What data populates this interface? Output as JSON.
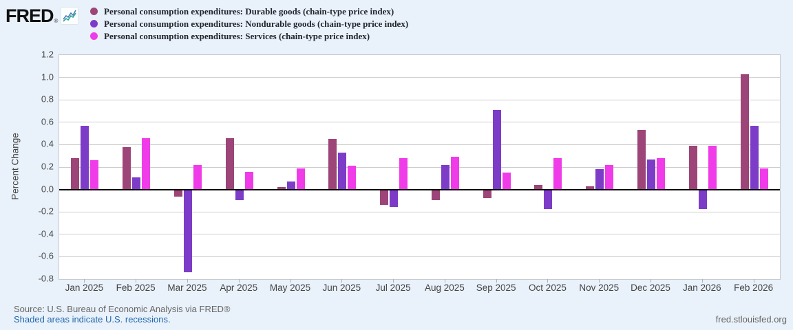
{
  "header": {
    "logo_text": "FRED",
    "logo_reg_mark": "®",
    "logo_icon": "line-chart-icon"
  },
  "legend": {
    "items": [
      {
        "label": "Personal consumption expenditures: Durable goods (chain-type price index)",
        "color": "#9d4479"
      },
      {
        "label": "Personal consumption expenditures: Nondurable goods (chain-type price index)",
        "color": "#7d3cc8"
      },
      {
        "label": "Personal consumption expenditures: Services (chain-type price index)",
        "color": "#ef3ce8"
      }
    ]
  },
  "chart_data": {
    "type": "bar",
    "title": "",
    "xlabel": "",
    "ylabel": "Percent Change",
    "ylim": [
      -0.8,
      1.2
    ],
    "yticks": [
      "1.2",
      "1.0",
      "0.8",
      "0.6",
      "0.4",
      "0.2",
      "0.0",
      "-0.2",
      "-0.4",
      "-0.6",
      "-0.8"
    ],
    "ytick_values": [
      1.2,
      1.0,
      0.8,
      0.6,
      0.4,
      0.2,
      0.0,
      -0.2,
      -0.4,
      -0.6,
      -0.8
    ],
    "grid": true,
    "legend_position": "top-left",
    "categories": [
      "Jan 2025",
      "Feb 2025",
      "Mar 2025",
      "Apr 2025",
      "May 2025",
      "Jun 2025",
      "Jul 2025",
      "Aug 2025",
      "Sep 2025",
      "Oct 2025",
      "Nov 2025",
      "Dec 2025",
      "Jan 2026",
      "Feb 2026"
    ],
    "series": [
      {
        "name": "Personal consumption expenditures: Durable goods (chain-type price index)",
        "color": "#9d4479",
        "values": [
          0.28,
          0.38,
          -0.06,
          0.46,
          0.02,
          0.45,
          -0.13,
          -0.09,
          -0.07,
          0.04,
          0.03,
          0.53,
          0.39,
          1.03
        ]
      },
      {
        "name": "Personal consumption expenditures: Nondurable goods (chain-type price index)",
        "color": "#7d3cc8",
        "values": [
          0.57,
          0.11,
          -0.73,
          -0.09,
          0.07,
          0.33,
          -0.15,
          0.22,
          0.71,
          -0.17,
          0.18,
          0.27,
          -0.17,
          0.57
        ]
      },
      {
        "name": "Personal consumption expenditures: Services (chain-type price index)",
        "color": "#ef3ce8",
        "values": [
          0.26,
          0.46,
          0.22,
          0.16,
          0.19,
          0.21,
          0.28,
          0.29,
          0.15,
          0.28,
          0.22,
          0.28,
          0.39,
          0.19
        ]
      }
    ]
  },
  "footer": {
    "source": "Source: U.S. Bureau of Economic Analysis via FRED®",
    "recessions_link": "Shaded areas indicate U.S. recessions.",
    "site": "fred.stlouisfed.org"
  },
  "colors": {
    "page_background": "#e9f1fa",
    "plot_background": "#ffffff",
    "gridline": "#cccccc",
    "zero_line": "#000000",
    "axis_text": "#444444",
    "legend_text": "#22252e",
    "source_text": "#666666",
    "link_blue": "#2268ae"
  }
}
